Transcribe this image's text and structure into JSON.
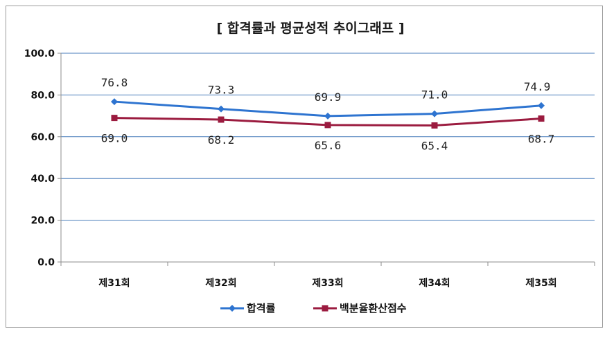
{
  "chart_data": {
    "type": "line",
    "title": "[ 합격률과 평균성적 추이그래프 ]",
    "categories": [
      "제31회",
      "제32회",
      "제33회",
      "제34회",
      "제35회"
    ],
    "series": [
      {
        "name": "합격률",
        "values": [
          76.8,
          73.3,
          69.9,
          71.0,
          74.9
        ],
        "color": "#2e74d0",
        "marker": "diamond"
      },
      {
        "name": "백분율환산점수",
        "values": [
          69.0,
          68.2,
          65.6,
          65.4,
          68.7
        ],
        "color": "#9b1b3f",
        "marker": "square"
      }
    ],
    "ylim": [
      0,
      100
    ],
    "yticks": [
      "0.0",
      "20.0",
      "40.0",
      "60.0",
      "80.0",
      "100.0"
    ],
    "grid": true,
    "legend": "bottom"
  }
}
